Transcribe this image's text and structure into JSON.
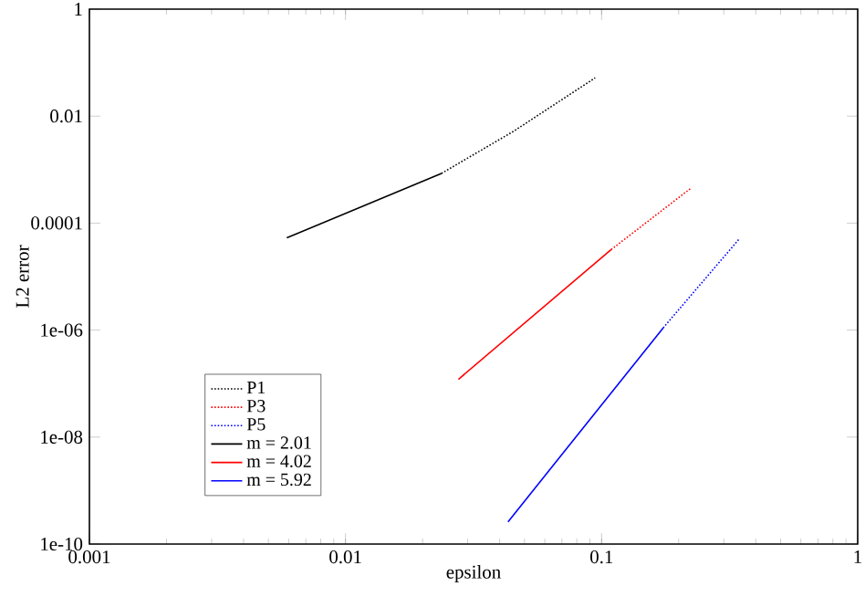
{
  "chart_data": {
    "type": "line",
    "xlabel": "epsilon",
    "ylabel": "L2 error",
    "log": "xy",
    "legend": "bottom left",
    "xlim": [
      0.001,
      1
    ],
    "ylim": [
      1e-10,
      1
    ],
    "xticks": [
      0.001,
      0.01,
      0.1,
      1
    ],
    "yticks": [
      {
        "value": 1e-10,
        "label": "1e-10"
      },
      {
        "value": 1e-08,
        "label": "1e-08"
      },
      {
        "value": 1e-06,
        "label": "1e-06"
      },
      0.0001,
      0.01,
      1
    ],
    "series": [
      {
        "name": "P1",
        "color": "#000000",
        "line_style": "dotted",
        "x": [
          0.0237,
          0.0456,
          0.0944
        ],
        "values": [
          0.00085,
          0.0053,
          0.052
        ]
      },
      {
        "name": "P3",
        "color": "#ff0000",
        "line_style": "dotted",
        "x": [
          0.109,
          0.222
        ],
        "values": [
          3.2e-05,
          0.00044
        ]
      },
      {
        "name": "P5",
        "color": "#0000ff",
        "line_style": "dotted",
        "x": [
          0.174,
          0.344
        ],
        "values": [
          1.1e-06,
          5e-05
        ]
      },
      {
        "name": "m = 2.01",
        "color": "#000000",
        "line_style": "solid",
        "x": [
          0.0059,
          0.0237
        ],
        "values": [
          5.3e-05,
          0.00085
        ]
      },
      {
        "name": "m = 4.02",
        "color": "#ff0000",
        "line_style": "solid",
        "x": [
          0.0276,
          0.109
        ],
        "values": [
          1.2e-07,
          3.2e-05
        ]
      },
      {
        "name": "m = 5.92",
        "color": "#0000ff",
        "line_style": "solid",
        "x": [
          0.0431,
          0.174
        ],
        "values": [
          2.6e-10,
          1.1e-06
        ]
      }
    ]
  }
}
